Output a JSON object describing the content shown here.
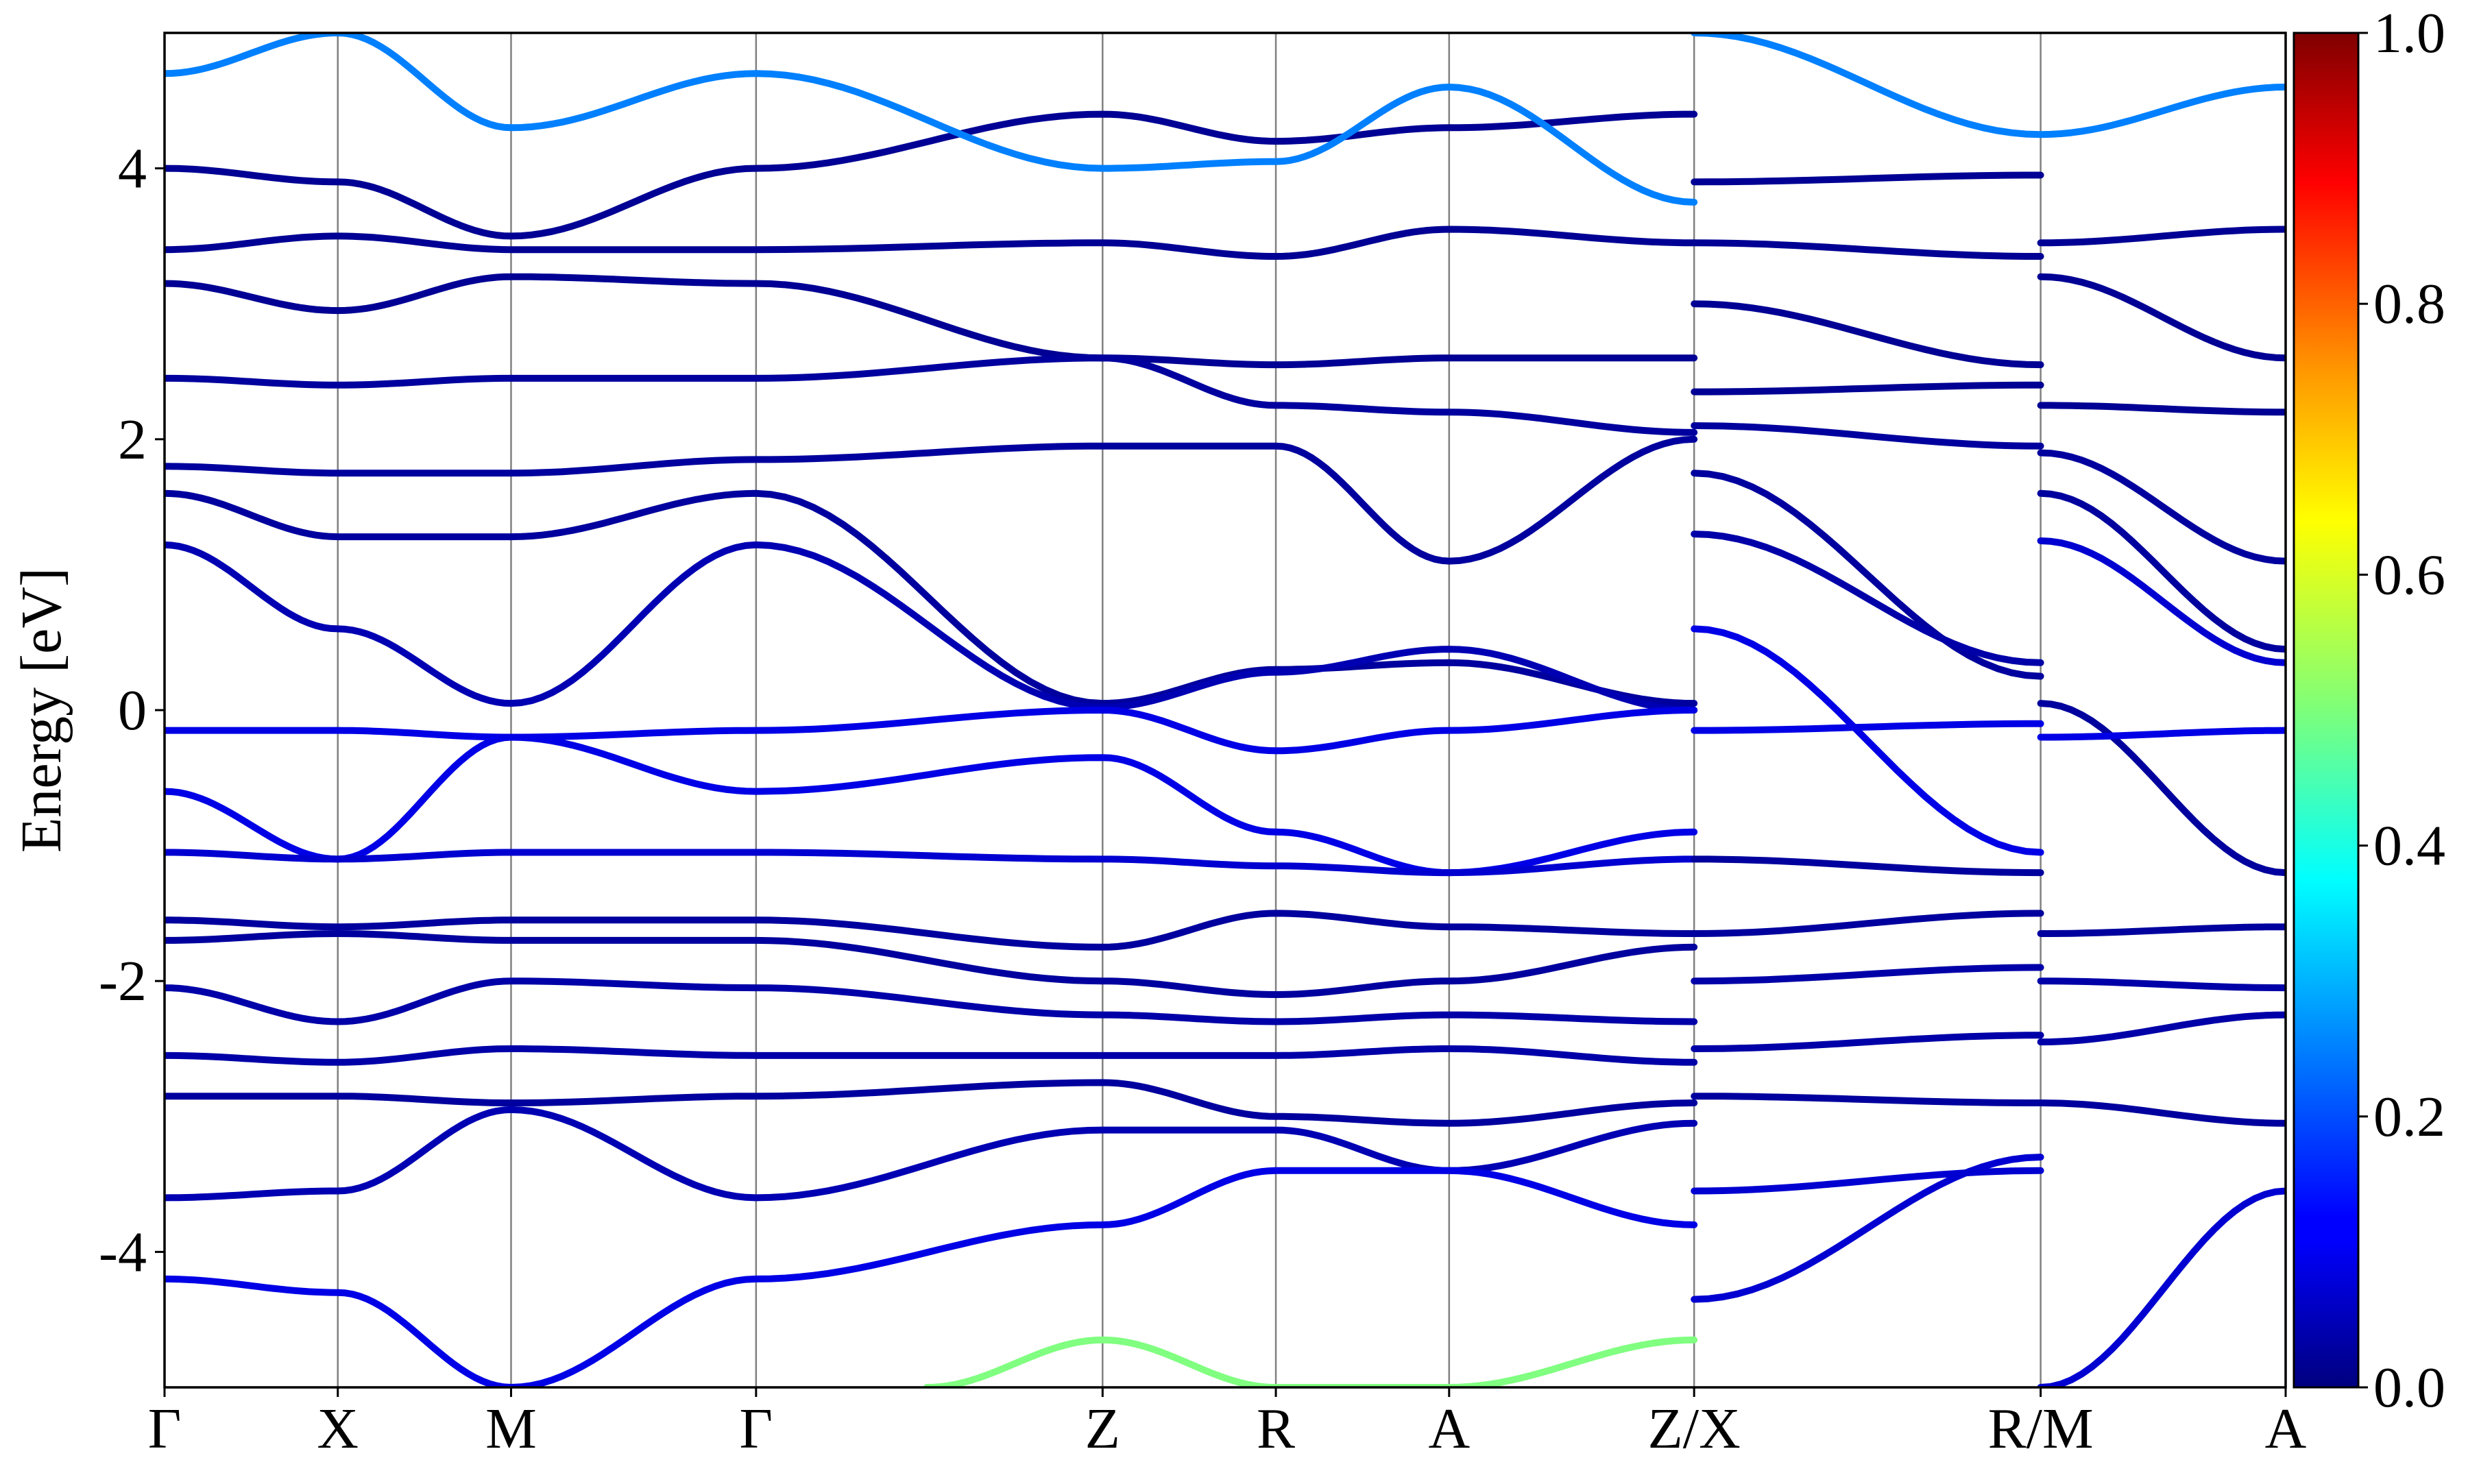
{
  "chart_data": {
    "type": "line",
    "title": "",
    "xlabel": "",
    "ylabel": "Energy [eV]",
    "ylim": [
      -5,
      5
    ],
    "yticks": [
      "-4",
      "-2",
      "0",
      "2",
      "4"
    ],
    "kpath": [
      "Γ",
      "X",
      "M",
      "Γ",
      "Z",
      "R",
      "A",
      "Z/X",
      "R/M",
      "A"
    ],
    "kpath_positions": [
      0,
      0.5,
      1.0,
      1.707,
      2.707,
      3.207,
      3.707,
      4.414,
      5.414,
      6.121
    ],
    "colorbar": {
      "min": 0.0,
      "max": 1.0,
      "ticks": [
        "0.0",
        "0.2",
        "0.4",
        "0.6",
        "0.8",
        "1.0"
      ],
      "colormap": "jet"
    },
    "series": [
      {
        "segment": "Γ-X-M-Γ-Z-R-A-Z",
        "x": [
          0,
          0.5,
          1.0,
          1.707,
          2.707,
          3.207,
          3.707,
          4.414
        ],
        "y": [
          4.0,
          3.9,
          3.5,
          4.0,
          4.4,
          4.2,
          4.3,
          4.4
        ],
        "weight": 0.02
      },
      {
        "segment": "Γ-X-M-Γ-Z-R-A-Z",
        "x": [
          0,
          0.5,
          1.0,
          1.707,
          2.707,
          3.207,
          3.707,
          4.414
        ],
        "y": [
          3.4,
          3.5,
          3.4,
          3.4,
          3.45,
          3.35,
          3.55,
          3.45
        ],
        "weight": 0.02
      },
      {
        "segment": "Γ-X-M-Γ-Z-R-A-Z",
        "x": [
          0,
          0.5,
          1.0,
          1.707,
          2.707,
          3.207,
          3.707,
          4.414
        ],
        "y": [
          3.15,
          2.95,
          3.2,
          3.15,
          2.6,
          2.55,
          2.6,
          2.6
        ],
        "weight": 0.02
      },
      {
        "segment": "Γ-X-M-Γ-Z-R-A-Z",
        "x": [
          0,
          0.5,
          1.0,
          1.707,
          2.707,
          3.207,
          3.707,
          4.414
        ],
        "y": [
          2.45,
          2.4,
          2.45,
          2.45,
          2.6,
          2.25,
          2.2,
          2.05
        ],
        "weight": 0.03
      },
      {
        "segment": "Γ-X-M-Γ-Z-R-A-Z",
        "x": [
          0,
          0.5,
          1.0,
          1.707,
          2.707,
          3.207,
          3.707,
          4.414
        ],
        "y": [
          1.8,
          1.75,
          1.75,
          1.85,
          1.95,
          1.95,
          1.1,
          2.0
        ],
        "weight": 0.03
      },
      {
        "segment": "Γ-X-M-Γ-Z-R-A-Z",
        "x": [
          0,
          0.5,
          1.0,
          1.707,
          2.707,
          3.207,
          3.707,
          4.414
        ],
        "y": [
          1.6,
          1.28,
          1.28,
          1.6,
          0.05,
          0.3,
          0.35,
          0.05
        ],
        "weight": 0.03
      },
      {
        "segment": "Γ-X-M-Γ-Z-R-A-Z",
        "x": [
          0,
          0.5,
          1.0,
          1.707,
          2.707,
          3.207,
          3.707,
          4.414
        ],
        "y": [
          1.22,
          0.6,
          0.05,
          1.22,
          0.02,
          0.28,
          0.45,
          0.0
        ],
        "weight": 0.05
      },
      {
        "segment": "Γ-X-M-Γ-Z-R-A-Z",
        "x": [
          0,
          0.5,
          1.0,
          1.707,
          2.707,
          3.207,
          3.707,
          4.414
        ],
        "y": [
          -0.15,
          -0.15,
          -0.2,
          -0.15,
          0.0,
          -0.3,
          -0.15,
          0.0
        ],
        "weight": 0.1
      },
      {
        "segment": "Γ-X-M-Γ-Z-R-A-Z",
        "x": [
          0,
          0.5,
          1.0,
          1.707,
          2.707,
          3.207,
          3.707,
          4.414
        ],
        "y": [
          -0.6,
          -1.1,
          -0.2,
          -0.6,
          -0.35,
          -0.9,
          -1.2,
          -0.9
        ],
        "weight": 0.1
      },
      {
        "segment": "Γ-X-M-Γ-Z-R-A-Z",
        "x": [
          0,
          0.5,
          1.0,
          1.707,
          2.707,
          3.207,
          3.707,
          4.414
        ],
        "y": [
          -1.05,
          -1.1,
          -1.05,
          -1.05,
          -1.1,
          -1.15,
          -1.2,
          -1.1
        ],
        "weight": 0.08
      },
      {
        "segment": "Γ-X-M-Γ-Z-R-A-Z",
        "x": [
          0,
          0.5,
          1.0,
          1.707,
          2.707,
          3.207,
          3.707,
          4.414
        ],
        "y": [
          -1.55,
          -1.6,
          -1.55,
          -1.55,
          -1.75,
          -1.5,
          -1.6,
          -1.65
        ],
        "weight": 0.03
      },
      {
        "segment": "Γ-X-M-Γ-Z-R-A-Z",
        "x": [
          0,
          0.5,
          1.0,
          1.707,
          2.707,
          3.207,
          3.707,
          4.414
        ],
        "y": [
          -1.7,
          -1.65,
          -1.7,
          -1.7,
          -2.0,
          -2.1,
          -2.0,
          -1.75
        ],
        "weight": 0.03
      },
      {
        "segment": "Γ-X-M-Γ-Z-R-A-Z",
        "x": [
          0,
          0.5,
          1.0,
          1.707,
          2.707,
          3.207,
          3.707,
          4.414
        ],
        "y": [
          -2.05,
          -2.3,
          -2.0,
          -2.05,
          -2.25,
          -2.3,
          -2.25,
          -2.3
        ],
        "weight": 0.04
      },
      {
        "segment": "Γ-X-M-Γ-Z-R-A-Z",
        "x": [
          0,
          0.5,
          1.0,
          1.707,
          2.707,
          3.207,
          3.707,
          4.414
        ],
        "y": [
          -2.55,
          -2.6,
          -2.5,
          -2.55,
          -2.55,
          -2.55,
          -2.5,
          -2.6
        ],
        "weight": 0.04
      },
      {
        "segment": "Γ-X-M-Γ-Z-R-A-Z",
        "x": [
          0,
          0.5,
          1.0,
          1.707,
          2.707,
          3.207,
          3.707,
          4.414
        ],
        "y": [
          -2.85,
          -2.85,
          -2.9,
          -2.85,
          -2.75,
          -3.0,
          -3.05,
          -2.9
        ],
        "weight": 0.03
      },
      {
        "segment": "Γ-X-M-Γ-Z-R-A-Z",
        "x": [
          0,
          0.5,
          1.0,
          1.707,
          2.707,
          3.207,
          3.707,
          4.414
        ],
        "y": [
          -3.6,
          -3.55,
          -2.95,
          -3.6,
          -3.1,
          -3.1,
          -3.4,
          -3.05
        ],
        "weight": 0.05
      },
      {
        "segment": "Γ-X-M-Γ-Z-R-A-Z",
        "x": [
          0,
          0.5,
          1.0,
          1.707,
          2.707,
          3.207,
          3.707,
          4.414
        ],
        "y": [
          -4.2,
          -4.3,
          -5.0,
          -4.2,
          -3.8,
          -3.4,
          -3.4,
          -3.8
        ],
        "weight": 0.1
      },
      {
        "segment": "Γ-X-M-Γ-Z-R-A-Z",
        "x": [
          0,
          0.5,
          1.0,
          1.707,
          2.707,
          3.207,
          3.707,
          4.414
        ],
        "y": [
          4.7,
          5.0,
          4.3,
          4.7,
          4.0,
          4.05,
          4.6,
          3.75
        ],
        "weight": 0.25
      },
      {
        "segment": "Γ-X-M-Γ-Z-R-A-Z",
        "x": [
          2.2,
          2.707,
          3.207,
          3.707,
          4.414
        ],
        "y": [
          -5.0,
          -4.65,
          -5.0,
          -5.0,
          -4.65
        ],
        "weight": 0.5
      },
      {
        "segment": "X-R",
        "x": [
          4.414,
          5.414
        ],
        "y": [
          3.9,
          3.95
        ],
        "weight": 0.02
      },
      {
        "segment": "X-R",
        "x": [
          4.414,
          5.414
        ],
        "y": [
          3.45,
          3.35
        ],
        "weight": 0.02
      },
      {
        "segment": "X-R",
        "x": [
          4.414,
          5.414
        ],
        "y": [
          3.0,
          2.55
        ],
        "weight": 0.02
      },
      {
        "segment": "X-R",
        "x": [
          4.414,
          5.414
        ],
        "y": [
          2.35,
          2.4
        ],
        "weight": 0.02
      },
      {
        "segment": "X-R",
        "x": [
          4.414,
          5.414
        ],
        "y": [
          2.1,
          1.95
        ],
        "weight": 0.03
      },
      {
        "segment": "X-R",
        "x": [
          4.414,
          5.414
        ],
        "y": [
          1.75,
          0.25
        ],
        "weight": 0.03
      },
      {
        "segment": "X-R",
        "x": [
          4.414,
          5.414
        ],
        "y": [
          1.3,
          0.35
        ],
        "weight": 0.04
      },
      {
        "segment": "X-R",
        "x": [
          4.414,
          5.414
        ],
        "y": [
          0.6,
          -1.05
        ],
        "weight": 0.1
      },
      {
        "segment": "X-R",
        "x": [
          4.414,
          5.414
        ],
        "y": [
          -0.15,
          -0.1
        ],
        "weight": 0.1
      },
      {
        "segment": "X-R",
        "x": [
          4.414,
          5.414
        ],
        "y": [
          -1.1,
          -1.2
        ],
        "weight": 0.03
      },
      {
        "segment": "X-R",
        "x": [
          4.414,
          5.414
        ],
        "y": [
          -1.65,
          -1.5
        ],
        "weight": 0.03
      },
      {
        "segment": "X-R",
        "x": [
          4.414,
          5.414
        ],
        "y": [
          -2.0,
          -1.9
        ],
        "weight": 0.04
      },
      {
        "segment": "X-R",
        "x": [
          4.414,
          5.414
        ],
        "y": [
          -2.5,
          -2.4
        ],
        "weight": 0.04
      },
      {
        "segment": "X-R",
        "x": [
          4.414,
          5.414
        ],
        "y": [
          -2.85,
          -2.9
        ],
        "weight": 0.03
      },
      {
        "segment": "X-R",
        "x": [
          4.414,
          5.414
        ],
        "y": [
          -3.55,
          -3.4
        ],
        "weight": 0.08
      },
      {
        "segment": "X-R",
        "x": [
          4.414,
          5.414
        ],
        "y": [
          -4.35,
          -3.3
        ],
        "weight": 0.08
      },
      {
        "segment": "X-R",
        "x": [
          4.414,
          5.414
        ],
        "y": [
          5.0,
          4.25
        ],
        "weight": 0.25
      },
      {
        "segment": "M-A",
        "x": [
          5.414,
          6.121
        ],
        "y": [
          4.25,
          4.6
        ],
        "weight": 0.25
      },
      {
        "segment": "M-A",
        "x": [
          5.414,
          6.121
        ],
        "y": [
          3.45,
          3.55
        ],
        "weight": 0.02
      },
      {
        "segment": "M-A",
        "x": [
          5.414,
          6.121
        ],
        "y": [
          3.2,
          2.6
        ],
        "weight": 0.02
      },
      {
        "segment": "M-A",
        "x": [
          5.414,
          6.121
        ],
        "y": [
          2.25,
          2.2
        ],
        "weight": 0.02
      },
      {
        "segment": "M-A",
        "x": [
          5.414,
          6.121
        ],
        "y": [
          1.9,
          1.1
        ],
        "weight": 0.03
      },
      {
        "segment": "M-A",
        "x": [
          5.414,
          6.121
        ],
        "y": [
          1.6,
          0.45
        ],
        "weight": 0.03
      },
      {
        "segment": "M-A",
        "x": [
          5.414,
          6.121
        ],
        "y": [
          1.25,
          0.35
        ],
        "weight": 0.08
      },
      {
        "segment": "M-A",
        "x": [
          5.414,
          6.121
        ],
        "y": [
          0.05,
          -1.2
        ],
        "weight": 0.03
      },
      {
        "segment": "M-A",
        "x": [
          5.414,
          6.121
        ],
        "y": [
          -0.2,
          -0.15
        ],
        "weight": 0.1
      },
      {
        "segment": "M-A",
        "x": [
          5.414,
          6.121
        ],
        "y": [
          -1.65,
          -1.6
        ],
        "weight": 0.03
      },
      {
        "segment": "M-A",
        "x": [
          5.414,
          6.121
        ],
        "y": [
          -2.0,
          -2.05
        ],
        "weight": 0.04
      },
      {
        "segment": "M-A",
        "x": [
          5.414,
          6.121
        ],
        "y": [
          -2.45,
          -2.25
        ],
        "weight": 0.04
      },
      {
        "segment": "M-A",
        "x": [
          5.414,
          6.121
        ],
        "y": [
          -2.9,
          -3.05
        ],
        "weight": 0.03
      },
      {
        "segment": "M-A",
        "x": [
          5.414,
          6.121
        ],
        "y": [
          -5.0,
          -3.55
        ],
        "weight": 0.08
      }
    ]
  }
}
